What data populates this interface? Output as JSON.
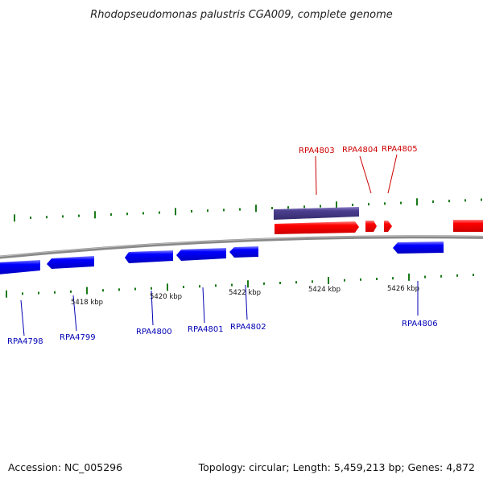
{
  "header": {
    "title": "Rhodopseudomonas palustris CGA009, complete genome"
  },
  "footer": {
    "accession": "Accession: NC_005296",
    "summary": "Topology: circular; Length: 5,459,213 bp; Genes: 4,872"
  },
  "colors": {
    "forward_gene": "#ff0000",
    "reverse_gene": "#0000ff",
    "highlight_gene": "#4b3f8f",
    "backbone": "#808080",
    "tick": "#1a7a1a",
    "forward_label": "#cc0000",
    "reverse_label": "#0000b4"
  },
  "map": {
    "kbp_labels": [
      "5418 kbp",
      "5420 kbp",
      "5422 kbp",
      "5424 kbp",
      "5426 kbp"
    ],
    "forward_gene_labels": [
      "RPA4803",
      "RPA4804",
      "RPA4805"
    ],
    "reverse_gene_labels": [
      "RPA4798",
      "RPA4799",
      "RPA4800",
      "RPA4801",
      "RPA4802",
      "RPA4806"
    ]
  }
}
